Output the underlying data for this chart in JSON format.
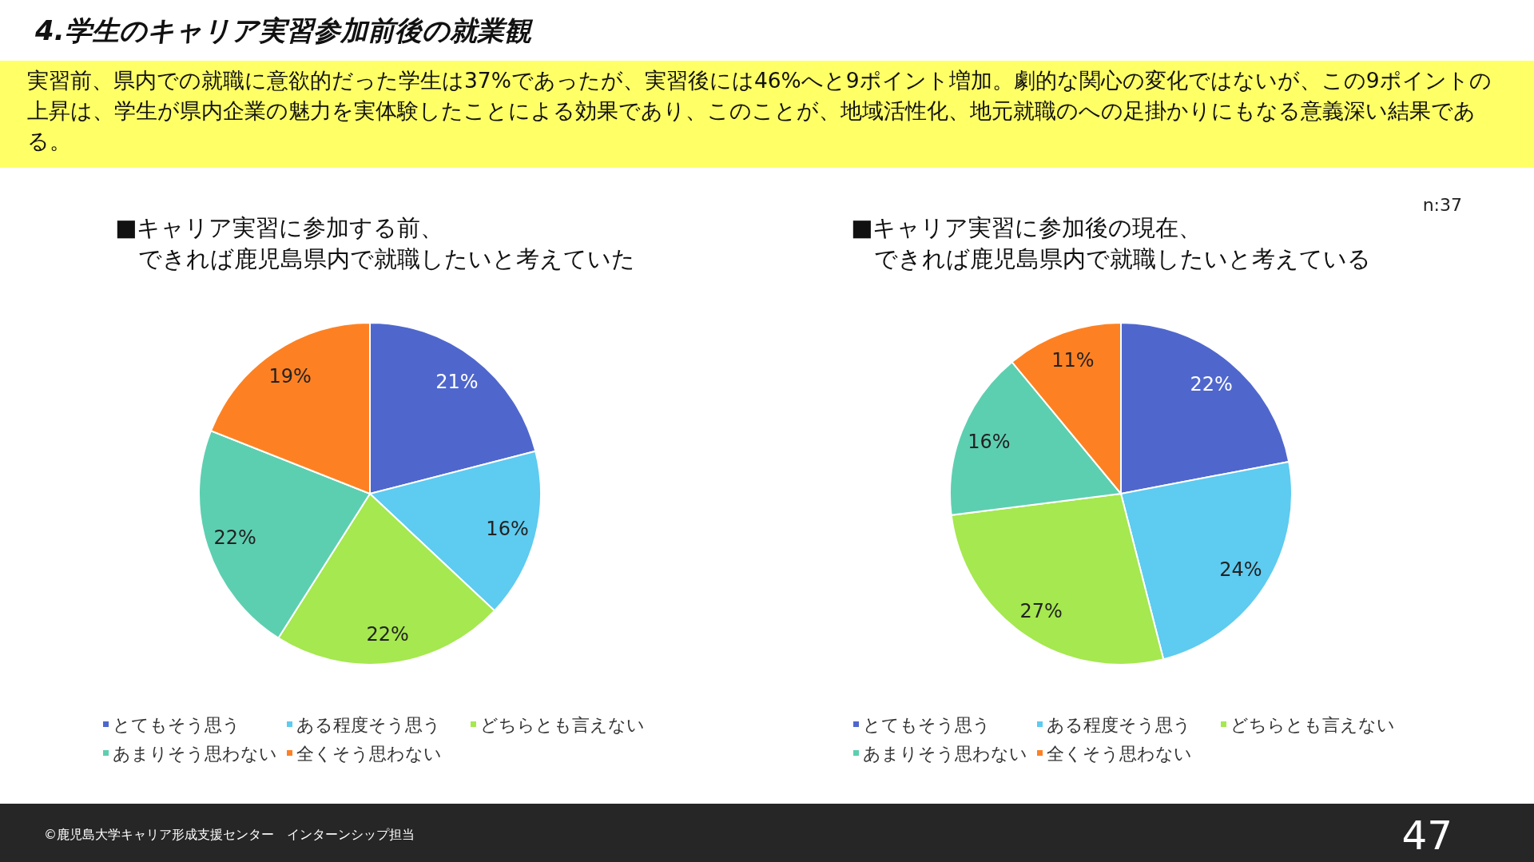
{
  "chart_data": [
    {
      "type": "other",
      "title": "4.学生のキャリア実習参加前後の就業観",
      "subtitle": "実習前、県内での就職に意欲的だった学生は37%であったが、実習後には46%へと9ポイント増加。劇的な関心の変化ではないが、この9ポイントの上昇は、学生が県内企業の魅力を実体験したことによる効果であり、このことが、地域活性化、地元就職のへの足掛かりにもなる意義深い結果である。",
      "annotations": [
        "©鹿児島大学キャリア形成支援センター　インターンシップ担当",
        "47"
      ]
    },
    {
      "type": "pie",
      "title": "■キャリア実習に参加する前、できれば鹿児島県内で就職したいと考えていた",
      "categories": [
        "とてもそう思う",
        "ある程度そう思う",
        "どちらとも言えない",
        "あまりそう思わない",
        "全くそう思わない"
      ],
      "values": [
        21,
        16,
        22,
        22,
        19
      ],
      "value_labels": [
        "21%",
        "16%",
        "22%",
        "22%",
        "19%"
      ],
      "colors": [
        "#4f67cd",
        "#5ecbf0",
        "#a5e84f",
        "#5dcfb1",
        "#fd8123"
      ],
      "legend": "bottom"
    },
    {
      "type": "pie",
      "title": "■キャリア実習に参加後の現在、できれば鹿児島県内で就職したいと考えている",
      "categories": [
        "とてもそう思う",
        "ある程度そう思う",
        "どちらとも言えない",
        "あまりそう思わない",
        "全くそう思わない"
      ],
      "values": [
        22,
        24,
        27,
        16,
        11
      ],
      "value_labels": [
        "22%",
        "24%",
        "27%",
        "16%",
        "11%"
      ],
      "colors": [
        "#4f67cd",
        "#5ecbf0",
        "#a5e84f",
        "#5dcfb1",
        "#fd8123"
      ],
      "legend": "bottom",
      "annotations": [
        "n:37"
      ]
    }
  ]
}
